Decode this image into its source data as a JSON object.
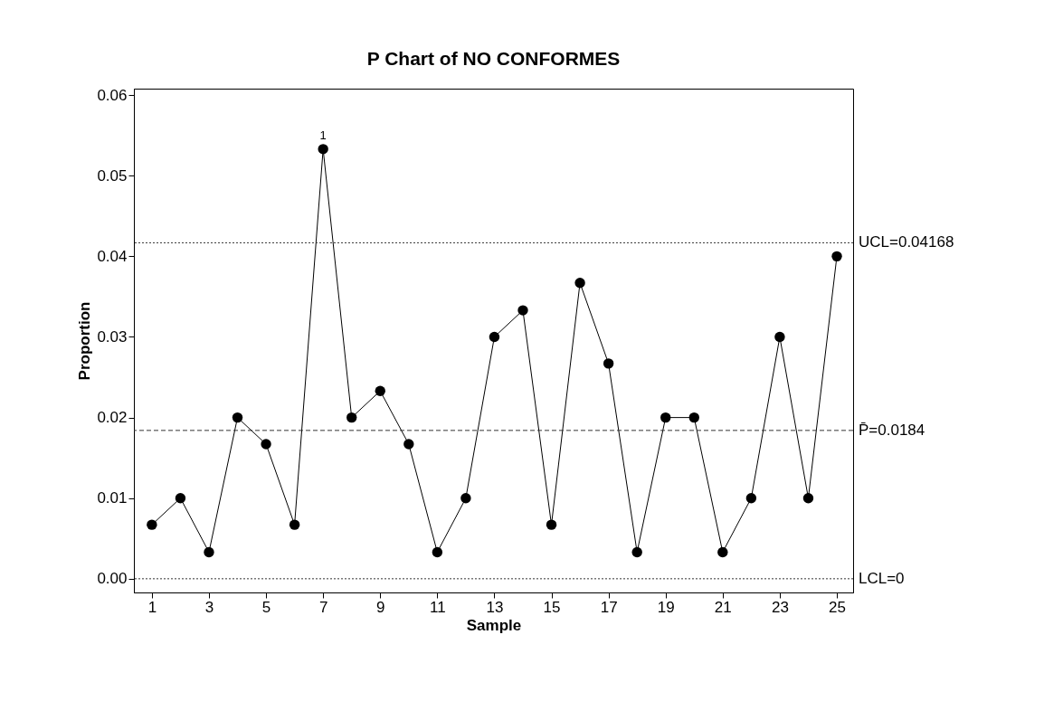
{
  "chart_data": {
    "type": "line",
    "title": "P Chart of NO CONFORMES",
    "xlabel": "Sample",
    "ylabel": "Proportion",
    "x": [
      1,
      2,
      3,
      4,
      5,
      6,
      7,
      8,
      9,
      10,
      11,
      12,
      13,
      14,
      15,
      16,
      17,
      18,
      19,
      20,
      21,
      22,
      23,
      24,
      25
    ],
    "series": [
      {
        "color": "#000000",
        "values": [
          0.0067,
          0.01,
          0.0033,
          0.02,
          0.0167,
          0.0067,
          0.0533,
          0.02,
          0.0233,
          0.0167,
          0.0033,
          0.01,
          0.03,
          0.0333,
          0.0067,
          0.0367,
          0.0267,
          0.0033,
          0.02,
          0.02,
          0.0033,
          0.01,
          0.03,
          0.01,
          0.04
        ]
      }
    ],
    "marker": "circle",
    "grid": false,
    "xlim": [
      0.37,
      25.57
    ],
    "xticks": [
      1,
      3,
      5,
      7,
      9,
      11,
      13,
      15,
      17,
      19,
      21,
      23,
      25
    ],
    "ylim": [
      -0.0017,
      0.0608
    ],
    "yticks": [
      {
        "value": 0,
        "label": "0.00"
      },
      {
        "value": 0.01,
        "label": "0.01"
      },
      {
        "value": 0.02,
        "label": "0.02"
      },
      {
        "value": 0.03,
        "label": "0.03"
      },
      {
        "value": 0.04,
        "label": "0.04"
      },
      {
        "value": 0.05,
        "label": "0.05"
      },
      {
        "value": 0.06,
        "label": "0.06"
      }
    ],
    "ref_lines": [
      {
        "axis": "y",
        "value": 0.04168,
        "label": "UCL=0.04168",
        "line_style": "dotted"
      },
      {
        "axis": "y",
        "value": 0.0184,
        "label": "P̄=0.0184",
        "line_style": "dashed"
      },
      {
        "axis": "y",
        "value": 0,
        "label": "LCL=0",
        "line_style": "dotted"
      }
    ],
    "annotations": [
      {
        "text": "1",
        "x": 7,
        "y": 0.0533
      }
    ]
  }
}
